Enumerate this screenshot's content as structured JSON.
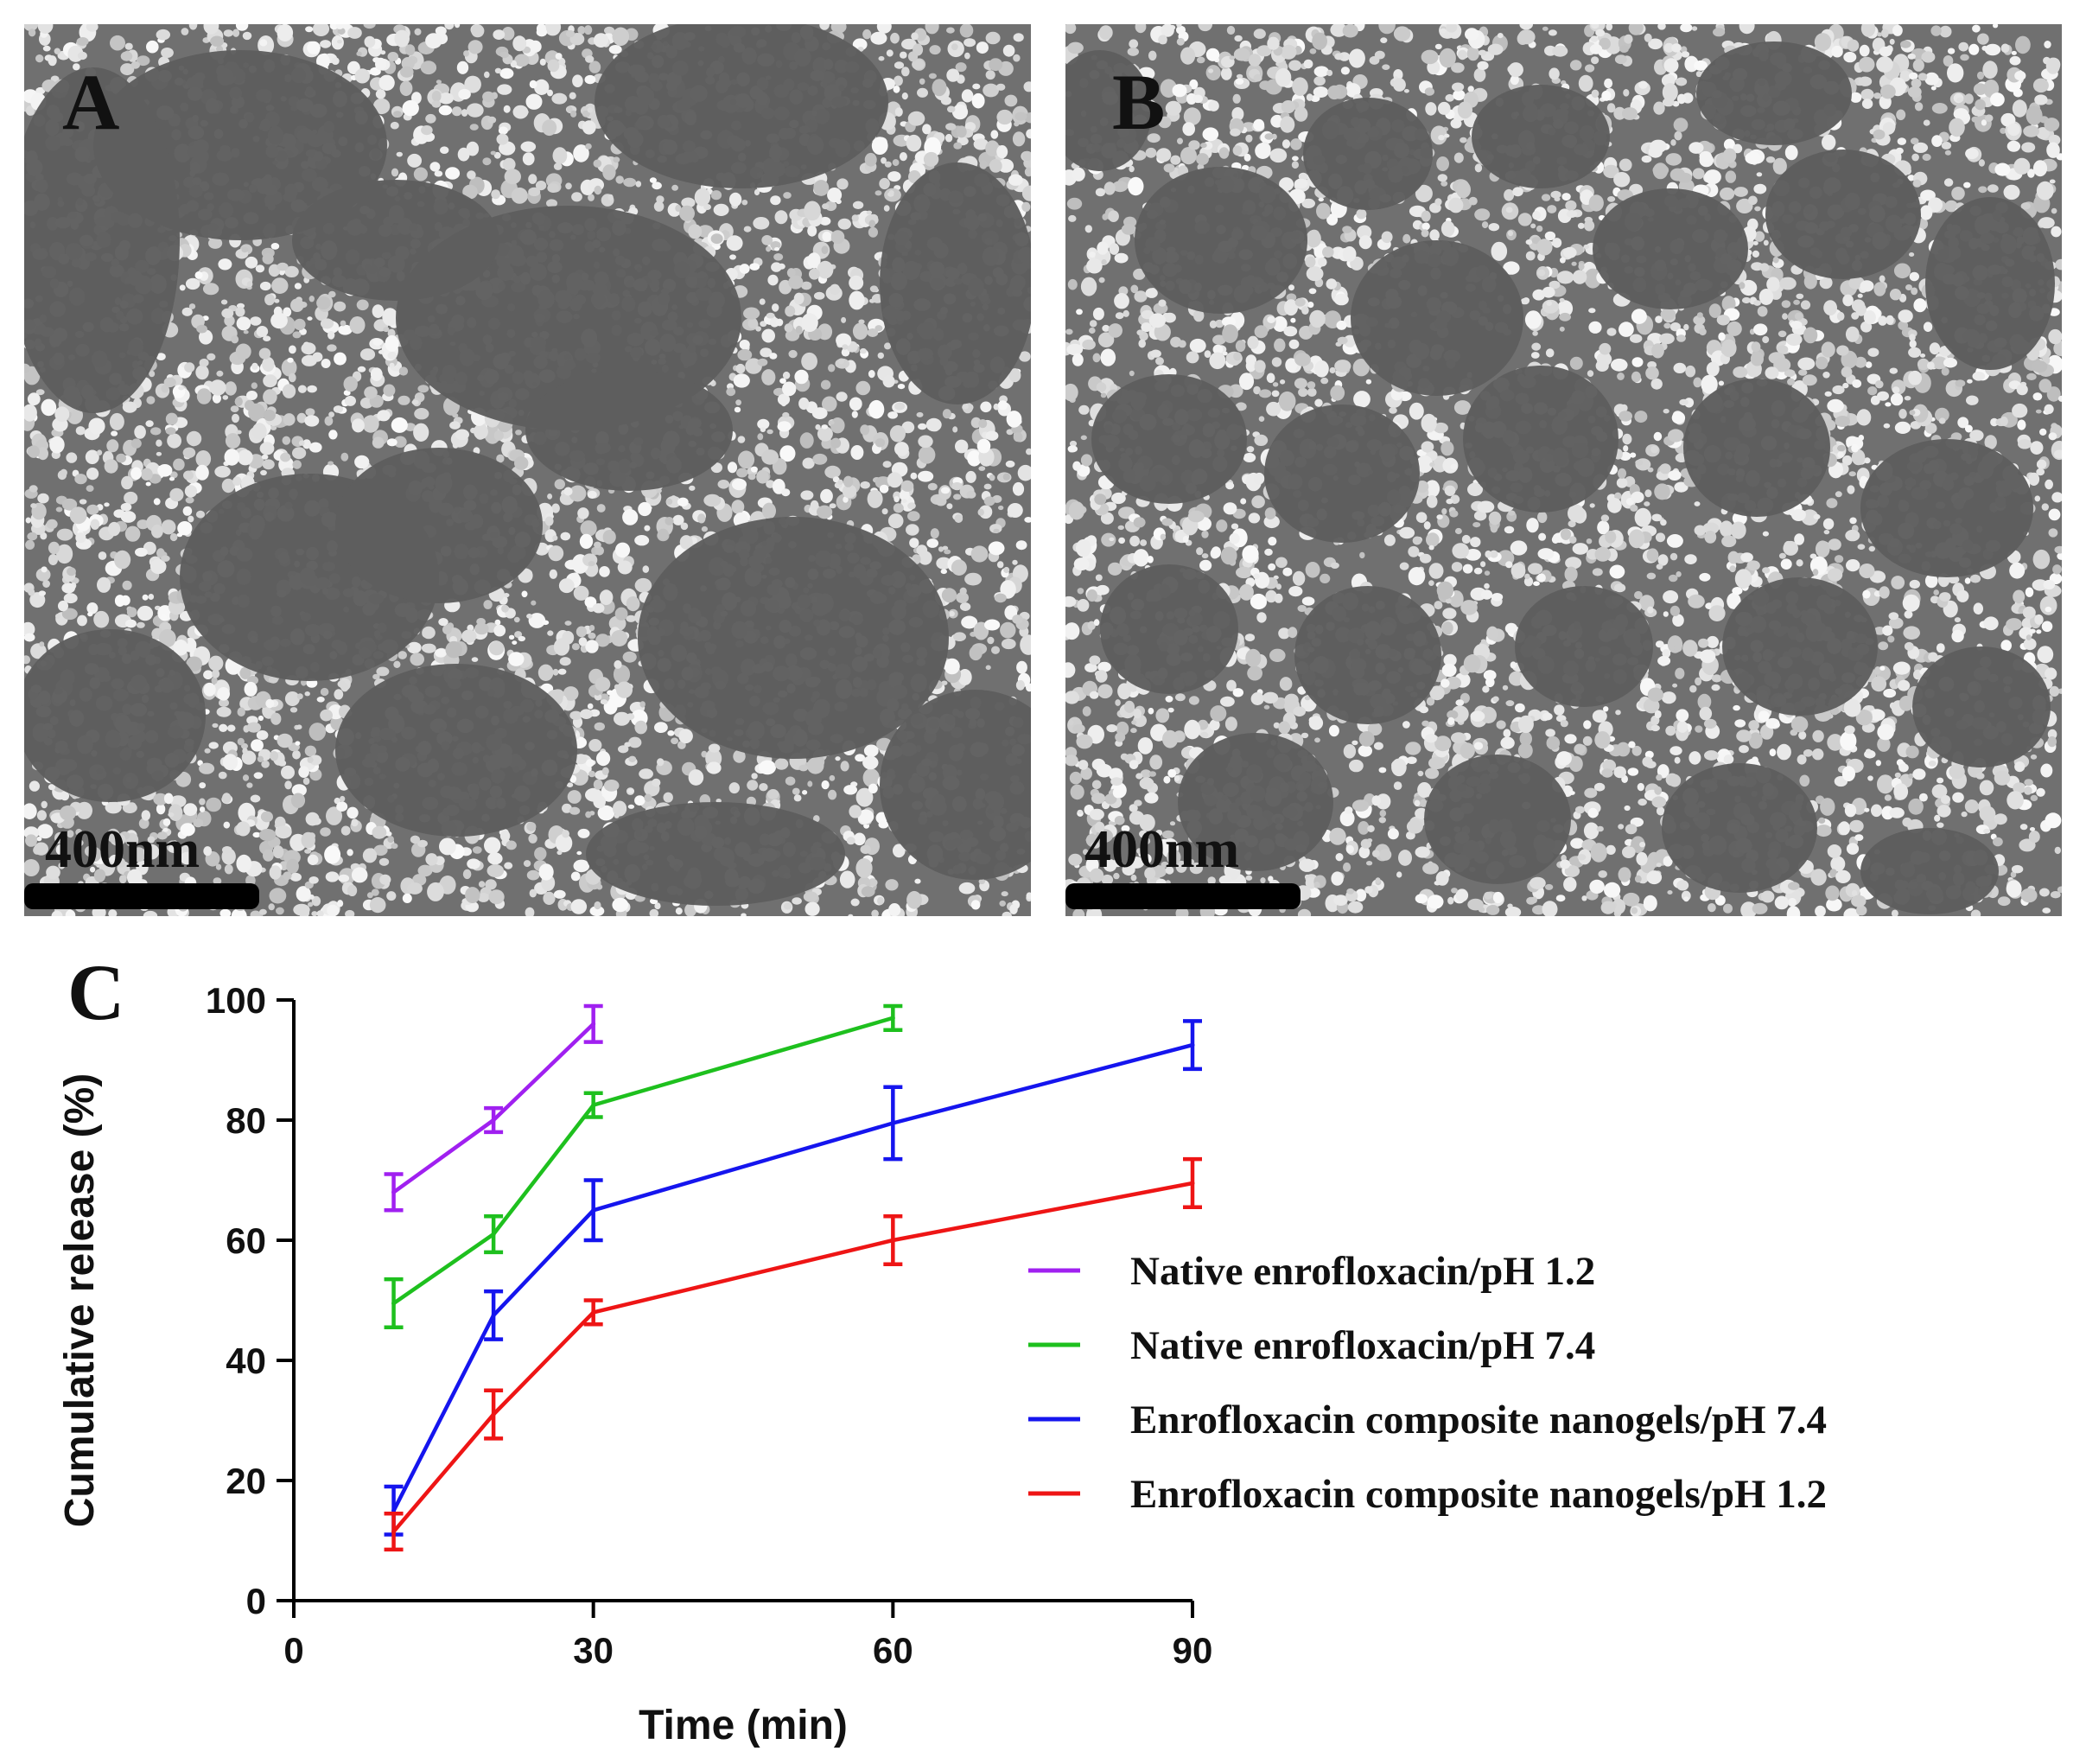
{
  "panels": {
    "a": {
      "label": "A",
      "scale_bar": "400nm"
    },
    "b": {
      "label": "B",
      "scale_bar": "400nm"
    },
    "c": {
      "label": "C"
    }
  },
  "colors": {
    "native_ph12": "#a020f0",
    "native_ph74": "#1ec01e",
    "nanogel_ph74": "#1515ee",
    "nanogel_ph12": "#ee1515"
  },
  "chart_data": {
    "type": "line",
    "xlabel": "Time (min)",
    "ylabel": "Cumulative release (%)",
    "xlim": [
      0,
      90
    ],
    "ylim": [
      0,
      100
    ],
    "xticks": [
      0,
      30,
      60,
      90
    ],
    "yticks": [
      0,
      20,
      40,
      60,
      80,
      100
    ],
    "legend_position": "right",
    "grid": false,
    "series": [
      {
        "name": "Native enrofloxacin/pH 1.2",
        "color": "#a020f0",
        "x": [
          10,
          20,
          30
        ],
        "y": [
          68,
          80,
          96
        ],
        "err": [
          3,
          2,
          3
        ]
      },
      {
        "name": "Native enrofloxacin/pH 7.4",
        "color": "#1ec01e",
        "x": [
          10,
          20,
          30,
          60
        ],
        "y": [
          49.5,
          61,
          82.5,
          97
        ],
        "err": [
          4,
          3,
          2,
          2
        ]
      },
      {
        "name": "Enrofloxacin composite nanogels/pH 7.4",
        "color": "#1515ee",
        "x": [
          10,
          20,
          30,
          60,
          90
        ],
        "y": [
          15,
          47.5,
          65,
          79.5,
          92.5
        ],
        "err": [
          4,
          4,
          5,
          6,
          4
        ]
      },
      {
        "name": "Enrofloxacin composite nanogels/pH 1.2",
        "color": "#ee1515",
        "x": [
          10,
          20,
          30,
          60,
          90
        ],
        "y": [
          11.5,
          31,
          48,
          60,
          69.5
        ],
        "err": [
          3,
          4,
          2,
          4,
          4
        ]
      }
    ]
  }
}
